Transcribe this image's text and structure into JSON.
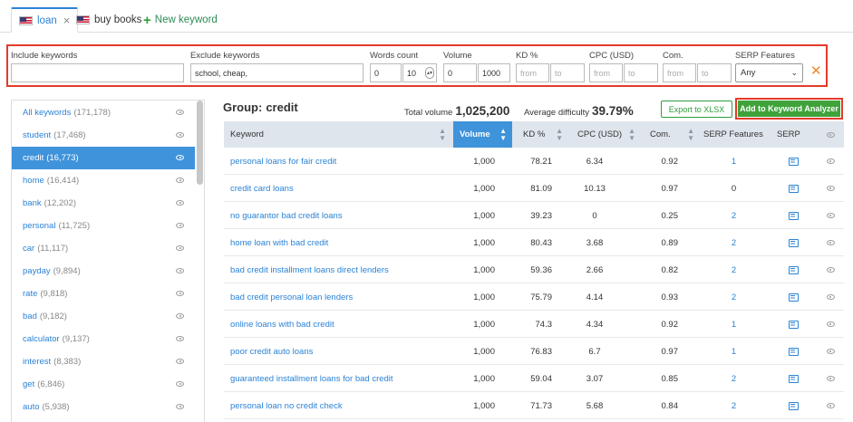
{
  "tabs": [
    {
      "label": "loan",
      "active": true
    },
    {
      "label": "buy books",
      "active": false
    }
  ],
  "new_keyword_label": "New keyword",
  "filters": {
    "include": {
      "label": "Include keywords",
      "value": ""
    },
    "exclude": {
      "label": "Exclude keywords",
      "value": "school, cheap,"
    },
    "words": {
      "label": "Words count",
      "from": "0",
      "to": "10"
    },
    "volume": {
      "label": "Volume",
      "from": "0",
      "to": "1000"
    },
    "kd": {
      "label": "KD %",
      "from_ph": "from",
      "to_ph": "to"
    },
    "cpc": {
      "label": "CPC (USD)",
      "from_ph": "from",
      "to_ph": "to"
    },
    "com": {
      "label": "Com.",
      "from_ph": "from",
      "to_ph": "to"
    },
    "serp": {
      "label": "SERP Features",
      "value": "Any"
    }
  },
  "sidebar": {
    "items": [
      {
        "label": "All keywords",
        "count": "(171,178)"
      },
      {
        "label": "student",
        "count": "(17,468)"
      },
      {
        "label": "credit",
        "count": "(16,773)",
        "active": true
      },
      {
        "label": "home",
        "count": "(16,414)"
      },
      {
        "label": "bank",
        "count": "(12,202)"
      },
      {
        "label": "personal",
        "count": "(11,725)"
      },
      {
        "label": "car",
        "count": "(11,117)"
      },
      {
        "label": "payday",
        "count": "(9,894)"
      },
      {
        "label": "rate",
        "count": "(9,818)"
      },
      {
        "label": "bad",
        "count": "(9,182)"
      },
      {
        "label": "calculator",
        "count": "(9,137)"
      },
      {
        "label": "interest",
        "count": "(8,383)"
      },
      {
        "label": "get",
        "count": "(6,846)"
      },
      {
        "label": "auto",
        "count": "(5,938)"
      }
    ]
  },
  "group": {
    "label": "Group:",
    "name": "credit",
    "total_volume_label": "Total volume",
    "total_volume": "1,025,200",
    "avg_difficulty_label": "Average difficulty",
    "avg_difficulty": "39.79%"
  },
  "buttons": {
    "export": "Export to XLSX",
    "add": "Add to Keyword Analyzer"
  },
  "table": {
    "headers": {
      "keyword": "Keyword",
      "volume": "Volume",
      "kd": "KD %",
      "cpc": "CPC (USD)",
      "com": "Com.",
      "serpf": "SERP Features",
      "serp": "SERP"
    },
    "rows": [
      {
        "keyword": "personal loans for fair credit",
        "volume": "1,000",
        "kd": "78.21",
        "cpc": "6.34",
        "com": "0.92",
        "serpf": "1"
      },
      {
        "keyword": "credit card loans",
        "volume": "1,000",
        "kd": "81.09",
        "cpc": "10.13",
        "com": "0.97",
        "serpf": "0"
      },
      {
        "keyword": "no guarantor bad credit loans",
        "volume": "1,000",
        "kd": "39.23",
        "cpc": "0",
        "com": "0.25",
        "serpf": "2"
      },
      {
        "keyword": "home loan with bad credit",
        "volume": "1,000",
        "kd": "80.43",
        "cpc": "3.68",
        "com": "0.89",
        "serpf": "2"
      },
      {
        "keyword": "bad credit installment loans direct lenders",
        "volume": "1,000",
        "kd": "59.36",
        "cpc": "2.66",
        "com": "0.82",
        "serpf": "2"
      },
      {
        "keyword": "bad credit personal loan lenders",
        "volume": "1,000",
        "kd": "75.79",
        "cpc": "4.14",
        "com": "0.93",
        "serpf": "2"
      },
      {
        "keyword": "online loans with bad credit",
        "volume": "1,000",
        "kd": "74.3",
        "cpc": "4.34",
        "com": "0.92",
        "serpf": "1"
      },
      {
        "keyword": "poor credit auto loans",
        "volume": "1,000",
        "kd": "76.83",
        "cpc": "6.7",
        "com": "0.97",
        "serpf": "1"
      },
      {
        "keyword": "guaranteed installment loans for bad credit",
        "volume": "1,000",
        "kd": "59.04",
        "cpc": "3.07",
        "com": "0.85",
        "serpf": "2"
      },
      {
        "keyword": "personal loan no credit check",
        "volume": "1,000",
        "kd": "71.73",
        "cpc": "5.68",
        "com": "0.84",
        "serpf": "2"
      }
    ]
  }
}
